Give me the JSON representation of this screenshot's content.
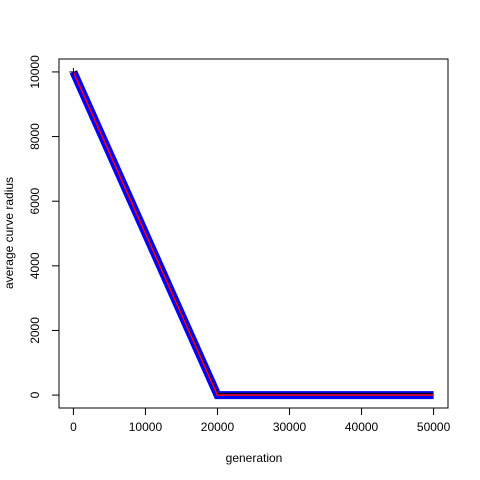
{
  "chart_data": {
    "type": "line",
    "title": "",
    "xlabel": "generation",
    "ylabel": "average curve radius",
    "xlim": [
      -2000,
      52000
    ],
    "ylim": [
      -400,
      10400
    ],
    "x_ticks": [
      0,
      10000,
      20000,
      30000,
      40000,
      50000
    ],
    "x_tick_labels": [
      "0",
      "10000",
      "20000",
      "30000",
      "40000",
      "50000"
    ],
    "y_ticks": [
      0,
      2000,
      4000,
      6000,
      8000,
      10000
    ],
    "y_tick_labels": [
      "0",
      "2000",
      "4000",
      "6000",
      "8000",
      "10000"
    ],
    "grid": false,
    "colors": {
      "band": "#0000ff",
      "center": "#ff0000",
      "upper": "#000000"
    },
    "series": [
      {
        "x": [
          0,
          20000,
          50000
        ],
        "y": [
          10000,
          50,
          50
        ]
      },
      {
        "x": [
          0,
          20000,
          50000
        ],
        "y": [
          10000,
          0,
          0
        ]
      },
      {
        "x": [
          0,
          20000,
          50000
        ],
        "y": [
          10000,
          -50,
          -50
        ]
      }
    ]
  }
}
